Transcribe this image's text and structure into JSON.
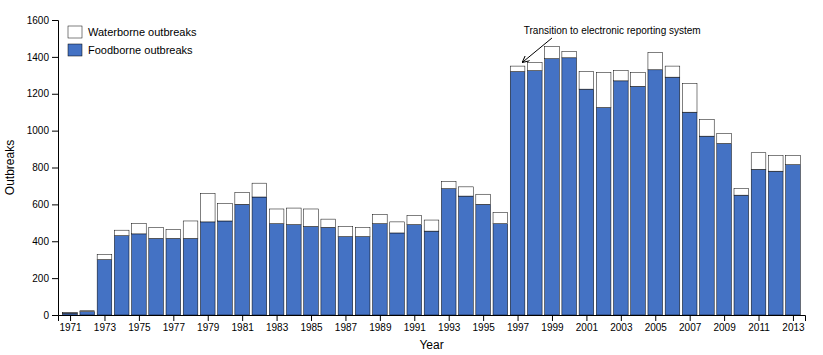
{
  "chart_data": {
    "type": "bar",
    "stacked": true,
    "x": [
      1971,
      1972,
      1973,
      1974,
      1975,
      1976,
      1977,
      1978,
      1979,
      1980,
      1981,
      1982,
      1983,
      1984,
      1985,
      1986,
      1987,
      1988,
      1989,
      1990,
      1991,
      1992,
      1993,
      1994,
      1995,
      1996,
      1997,
      1998,
      1999,
      2000,
      2001,
      2002,
      2003,
      2004,
      2005,
      2006,
      2007,
      2008,
      2009,
      2010,
      2011,
      2012,
      2013
    ],
    "series": [
      {
        "name": "Foodborne outbreaks",
        "color": "#4472C4",
        "values": [
          10,
          18,
          300,
          430,
          440,
          415,
          415,
          415,
          505,
          510,
          600,
          640,
          495,
          490,
          480,
          475,
          425,
          425,
          495,
          445,
          490,
          455,
          685,
          645,
          600,
          495,
          1320,
          1325,
          1390,
          1395,
          1225,
          1125,
          1270,
          1240,
          1330,
          1290,
          1100,
          970,
          930,
          650,
          790,
          780,
          815
        ]
      },
      {
        "name": "Waterborne outbreaks",
        "color": "#FFFFFF",
        "values": [
          3,
          5,
          28,
          30,
          55,
          60,
          50,
          95,
          155,
          95,
          65,
          75,
          80,
          90,
          95,
          45,
          55,
          50,
          50,
          60,
          50,
          60,
          40,
          50,
          55,
          60,
          30,
          45,
          65,
          35,
          95,
          190,
          55,
          75,
          95,
          60,
          155,
          90,
          55,
          35,
          90,
          85,
          50
        ]
      }
    ],
    "xlabel": "Year",
    "ylabel": "Outbreaks",
    "xlim": [
      1970.3,
      2013.7
    ],
    "xticks": [
      1971,
      1973,
      1975,
      1977,
      1979,
      1981,
      1983,
      1985,
      1987,
      1989,
      1991,
      1993,
      1995,
      1997,
      1999,
      2001,
      2003,
      2005,
      2007,
      2009,
      2011,
      2013
    ],
    "ylim": [
      0,
      1600
    ],
    "yticks": [
      0,
      200,
      400,
      600,
      800,
      1000,
      1200,
      1400,
      1600
    ],
    "grid": false,
    "legend": "upper left",
    "annotations": [
      {
        "text": "Transition to electronic reporting system",
        "x": 1997
      }
    ]
  }
}
